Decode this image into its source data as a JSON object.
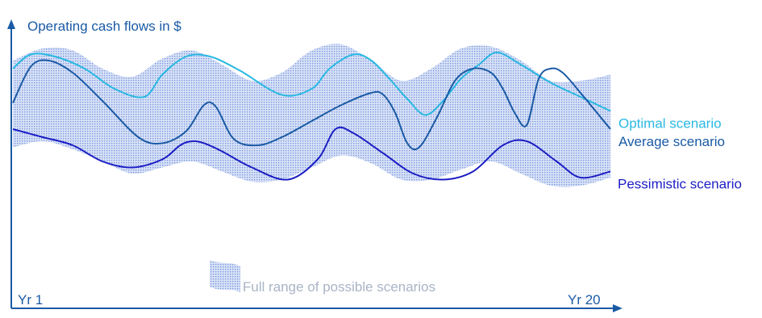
{
  "chart_data": {
    "type": "line",
    "title": "",
    "ylabel": "Operating cash flows in $",
    "xlabel": "",
    "x_tick_labels": {
      "start": "Yr 1",
      "end": "Yr 20"
    },
    "xlim": [
      0,
      100
    ],
    "ylim": [
      0,
      100
    ],
    "band": {
      "name": "Full range of possible scenarios",
      "color": "#4a6fd1",
      "x": [
        0,
        5,
        10,
        15,
        20,
        25,
        30,
        35,
        40,
        45,
        50,
        55,
        60,
        65,
        70,
        75,
        80,
        85,
        90,
        95,
        100
      ],
      "upper": [
        90,
        96,
        95,
        86,
        82,
        91,
        95,
        88,
        80,
        84,
        95,
        98,
        90,
        80,
        86,
        96,
        97,
        90,
        80,
        80,
        83
      ],
      "lower": [
        47,
        50,
        46,
        40,
        34,
        37,
        40,
        35,
        30,
        31,
        37,
        43,
        39,
        31,
        31,
        36,
        40,
        34,
        28,
        28,
        32
      ]
    },
    "series": [
      {
        "name": "Optimal scenario",
        "color": "#29b8e2",
        "x": [
          0,
          3,
          7,
          12,
          17,
          22,
          25,
          29,
          33,
          38,
          45,
          50,
          53,
          57,
          60,
          63,
          66,
          69,
          72,
          75,
          78,
          81,
          85,
          90,
          95,
          100
        ],
        "y": [
          86,
          93,
          92,
          86,
          76,
          72,
          83,
          92,
          92,
          85,
          73,
          76,
          86,
          93,
          90,
          81,
          71,
          63,
          70,
          81,
          88,
          94,
          88,
          79,
          72,
          65
        ]
      },
      {
        "name": "Average scenario",
        "color": "#1a5aa5",
        "x": [
          0,
          3,
          6,
          10,
          15,
          21,
          25,
          29,
          32,
          34,
          37,
          41,
          45,
          50,
          55,
          60,
          62,
          64,
          66,
          68,
          71,
          74,
          77,
          80,
          82,
          84,
          86,
          88,
          90,
          92,
          95,
          100
        ],
        "y": [
          69,
          87,
          90,
          84,
          70,
          52,
          49,
          55,
          68,
          67,
          51,
          48,
          52,
          60,
          68,
          74,
          73,
          64,
          49,
          47,
          62,
          80,
          86,
          84,
          76,
          64,
          58,
          81,
          86,
          84,
          74,
          56
        ]
      },
      {
        "name": "Pessimistic scenario",
        "color": "#1c1ec4",
        "x": [
          0,
          5,
          10,
          15,
          20,
          25,
          28,
          30,
          32,
          35,
          40,
          46,
          51,
          54,
          57,
          62,
          67,
          72,
          77,
          82,
          86,
          91,
          95,
          100
        ],
        "y": [
          56,
          52,
          48,
          40,
          37,
          41,
          48,
          50,
          49,
          45,
          37,
          31,
          41,
          56,
          54,
          44,
          34,
          31,
          35,
          48,
          50,
          40,
          32,
          35
        ]
      }
    ]
  }
}
